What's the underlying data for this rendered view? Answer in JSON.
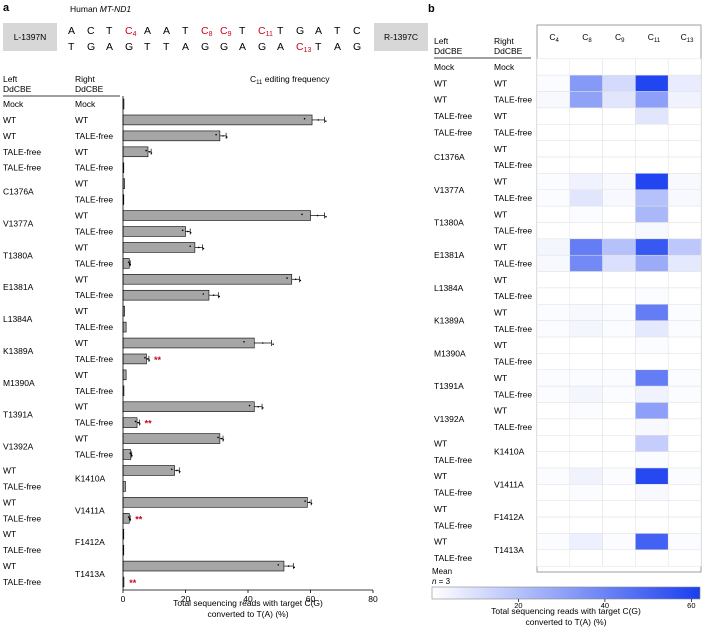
{
  "panel_a": {
    "letter": "a",
    "gene_prefix": "Human ",
    "gene_name": "MT-ND1",
    "left_box": "L-1397N",
    "right_box": "R-1397C",
    "top_strand": [
      {
        "b": "A"
      },
      {
        "b": "C"
      },
      {
        "b": "T"
      },
      {
        "b": "C",
        "sub": "4",
        "red": true
      },
      {
        "b": "A"
      },
      {
        "b": "A"
      },
      {
        "b": "T"
      },
      {
        "b": "C",
        "sub": "8",
        "red": true
      },
      {
        "b": "C",
        "sub": "9",
        "red": true
      },
      {
        "b": "T"
      },
      {
        "b": "C",
        "sub": "11",
        "red": true
      },
      {
        "b": "T"
      },
      {
        "b": "G"
      },
      {
        "b": "A"
      },
      {
        "b": "T"
      },
      {
        "b": "C"
      }
    ],
    "bottom_strand": [
      {
        "b": "T"
      },
      {
        "b": "G"
      },
      {
        "b": "A"
      },
      {
        "b": "G"
      },
      {
        "b": "T"
      },
      {
        "b": "T"
      },
      {
        "b": "A"
      },
      {
        "b": "G"
      },
      {
        "b": "G"
      },
      {
        "b": "A"
      },
      {
        "b": "G"
      },
      {
        "b": "A"
      },
      {
        "b": "C",
        "sub": "13",
        "red": true
      },
      {
        "b": "T"
      },
      {
        "b": "A"
      },
      {
        "b": "G"
      }
    ],
    "col_left_l1": "Left",
    "col_left_l2": "DdCBE",
    "col_right_l1": "Right",
    "col_right_l2": "DdCBE",
    "chart_title_pre": "C",
    "chart_title_sub": "11",
    "chart_title_post": " editing frequency",
    "x_axis_l1": "Total sequencing reads with target C(G)",
    "x_axis_l2": "converted to T(A) (%)",
    "significance": "**",
    "rows": [
      {
        "left": "Mock",
        "right": "Mock"
      },
      {
        "left": "WT",
        "right": "WT"
      },
      {
        "left": "WT",
        "right": "TALE-free"
      },
      {
        "left": "TALE-free",
        "right": "WT"
      },
      {
        "left": "TALE-free",
        "right": "TALE-free"
      },
      {
        "left": "C1376A",
        "right": "WT"
      },
      {
        "left": "C1376A",
        "right": "TALE-free"
      },
      {
        "left": "V1377A",
        "right": "WT"
      },
      {
        "left": "V1377A",
        "right": "TALE-free"
      },
      {
        "left": "T1380A",
        "right": "WT"
      },
      {
        "left": "T1380A",
        "right": "TALE-free"
      },
      {
        "left": "E1381A",
        "right": "WT"
      },
      {
        "left": "E1381A",
        "right": "TALE-free"
      },
      {
        "left": "L1384A",
        "right": "WT"
      },
      {
        "left": "L1384A",
        "right": "TALE-free"
      },
      {
        "left": "K1389A",
        "right": "WT"
      },
      {
        "left": "K1389A",
        "right": "TALE-free"
      },
      {
        "left": "M1390A",
        "right": "WT"
      },
      {
        "left": "M1390A",
        "right": "TALE-free"
      },
      {
        "left": "T1391A",
        "right": "WT"
      },
      {
        "left": "T1391A",
        "right": "TALE-free"
      },
      {
        "left": "V1392A",
        "right": "WT"
      },
      {
        "left": "V1392A",
        "right": "TALE-free"
      },
      {
        "left": "WT",
        "right": "K1410A"
      },
      {
        "left": "TALE-free",
        "right": "K1410A"
      },
      {
        "left": "WT",
        "right": "V1411A"
      },
      {
        "left": "TALE-free",
        "right": "V1411A"
      },
      {
        "left": "WT",
        "right": "F1412A"
      },
      {
        "left": "TALE-free",
        "right": "F1412A"
      },
      {
        "left": "WT",
        "right": "T1413A"
      },
      {
        "left": "TALE-free",
        "right": "T1413A"
      }
    ]
  },
  "panel_b": {
    "letter": "b",
    "col_left_l1": "Left",
    "col_left_l2": "DdCBE",
    "col_right_l1": "Right",
    "col_right_l2": "DdCBE",
    "columns": [
      {
        "base": "C",
        "sub": "4"
      },
      {
        "base": "C",
        "sub": "8"
      },
      {
        "base": "C",
        "sub": "9"
      },
      {
        "base": "C",
        "sub": "11"
      },
      {
        "base": "C",
        "sub": "13"
      }
    ],
    "colorbar_label_l1": "Mean",
    "colorbar_label_l2_italic": "n",
    "colorbar_label_l2_rest": " = 3",
    "colorbar_ticks": [
      20,
      40,
      60
    ],
    "colorbar_range": [
      0,
      62
    ],
    "x_axis_l1": "Total sequencing reads with target C(G)",
    "x_axis_l2": "converted to T(A) (%)"
  },
  "chart_data": [
    {
      "type": "bar",
      "orientation": "horizontal",
      "title": "C11 editing frequency",
      "xlabel": "Total sequencing reads with target C(G) converted to T(A) (%)",
      "xlim": [
        0,
        80
      ],
      "xticks": [
        0,
        20,
        40,
        60,
        80
      ],
      "categories": [
        "Mock/Mock",
        "WT/WT",
        "WT/TALE-free",
        "TALE-free/WT",
        "TALE-free/TALE-free",
        "C1376A/WT",
        "C1376A/TALE-free",
        "V1377A/WT",
        "V1377A/TALE-free",
        "T1380A/WT",
        "T1380A/TALE-free",
        "E1381A/WT",
        "E1381A/TALE-free",
        "L1384A/WT",
        "L1384A/TALE-free",
        "K1389A/WT",
        "K1389A/TALE-free",
        "M1390A/WT",
        "M1390A/TALE-free",
        "T1391A/WT",
        "T1391A/TALE-free",
        "V1392A/WT",
        "V1392A/TALE-free",
        "WT/K1410A",
        "TALE-free/K1410A",
        "WT/V1411A",
        "TALE-free/V1411A",
        "WT/F1412A",
        "TALE-free/F1412A",
        "WT/T1413A",
        "TALE-free/T1413A"
      ],
      "values": [
        0.3,
        60.5,
        31,
        8,
        0.2,
        0.5,
        0.2,
        60,
        20,
        23,
        2,
        54,
        27.5,
        0.5,
        1,
        42,
        7.5,
        1,
        0.3,
        42,
        4.5,
        31,
        2.5,
        16.5,
        0.8,
        59,
        2,
        0.2,
        0.2,
        51.5,
        0.3
      ],
      "errors": [
        0.1,
        4,
        2,
        1,
        0.1,
        0.2,
        0.1,
        4.5,
        1.5,
        2.5,
        0.3,
        2.5,
        3,
        0.2,
        0.4,
        5.5,
        0.8,
        0.3,
        0.1,
        2.5,
        0.8,
        1,
        0.3,
        1.5,
        0.2,
        1.2,
        0.3,
        0.1,
        0.1,
        3,
        0.1
      ],
      "significant_rows": [
        16,
        20,
        26,
        30
      ]
    },
    {
      "type": "heatmap",
      "title": "Mean n = 3",
      "columns": [
        "C4",
        "C8",
        "C9",
        "C11",
        "C13"
      ],
      "rows": [
        "Mock/Mock",
        "WT/WT",
        "WT/TALE-free",
        "TALE-free/WT",
        "TALE-free/TALE-free",
        "C1376A/WT",
        "C1376A/TALE-free",
        "V1377A/WT",
        "V1377A/TALE-free",
        "T1380A/WT",
        "T1380A/TALE-free",
        "E1381A/WT",
        "E1381A/TALE-free",
        "L1384A/WT",
        "L1384A/TALE-free",
        "K1389A/WT",
        "K1389A/TALE-free",
        "M1390A/WT",
        "M1390A/TALE-free",
        "T1391A/WT",
        "T1391A/TALE-free",
        "V1392A/WT",
        "V1392A/TALE-free",
        "WT/K1410A",
        "TALE-free/K1410A",
        "WT/V1411A",
        "TALE-free/V1411A",
        "WT/F1412A",
        "TALE-free/F1412A",
        "WT/T1413A",
        "TALE-free/T1413A"
      ],
      "values": [
        [
          0,
          0,
          0,
          0,
          0
        ],
        [
          1,
          33,
          12,
          60,
          6
        ],
        [
          2,
          30,
          8,
          31,
          4
        ],
        [
          0,
          0,
          0,
          8,
          0
        ],
        [
          0,
          0,
          0,
          0,
          0
        ],
        [
          0,
          0,
          0,
          0,
          0
        ],
        [
          0,
          0,
          0,
          0,
          0
        ],
        [
          1,
          4,
          2,
          60,
          2
        ],
        [
          1,
          8,
          2,
          20,
          2
        ],
        [
          0,
          1,
          0,
          23,
          0
        ],
        [
          0,
          0,
          0,
          2,
          0
        ],
        [
          3,
          42,
          20,
          54,
          18
        ],
        [
          2,
          38,
          10,
          27,
          7
        ],
        [
          0,
          0,
          0,
          0,
          0
        ],
        [
          0,
          0,
          0,
          1,
          0
        ],
        [
          1,
          2,
          1,
          42,
          1
        ],
        [
          1,
          3,
          1,
          7,
          1
        ],
        [
          0,
          0,
          0,
          1,
          0
        ],
        [
          0,
          0,
          0,
          0,
          0
        ],
        [
          1,
          1,
          1,
          42,
          1
        ],
        [
          1,
          3,
          1,
          4,
          1
        ],
        [
          0,
          1,
          0,
          31,
          0
        ],
        [
          0,
          0,
          0,
          2,
          0
        ],
        [
          0,
          0,
          0,
          16,
          0
        ],
        [
          0,
          0,
          0,
          1,
          0
        ],
        [
          1,
          4,
          1,
          59,
          1
        ],
        [
          0,
          1,
          0,
          2,
          0
        ],
        [
          0,
          0,
          0,
          0,
          0
        ],
        [
          0,
          0,
          0,
          0,
          0
        ],
        [
          1,
          5,
          1,
          51,
          1
        ],
        [
          0,
          0,
          0,
          0,
          0
        ]
      ],
      "color_low": "#ffffff",
      "color_high": "#1a3ff0",
      "vmin": 0,
      "vmax": 62
    }
  ]
}
